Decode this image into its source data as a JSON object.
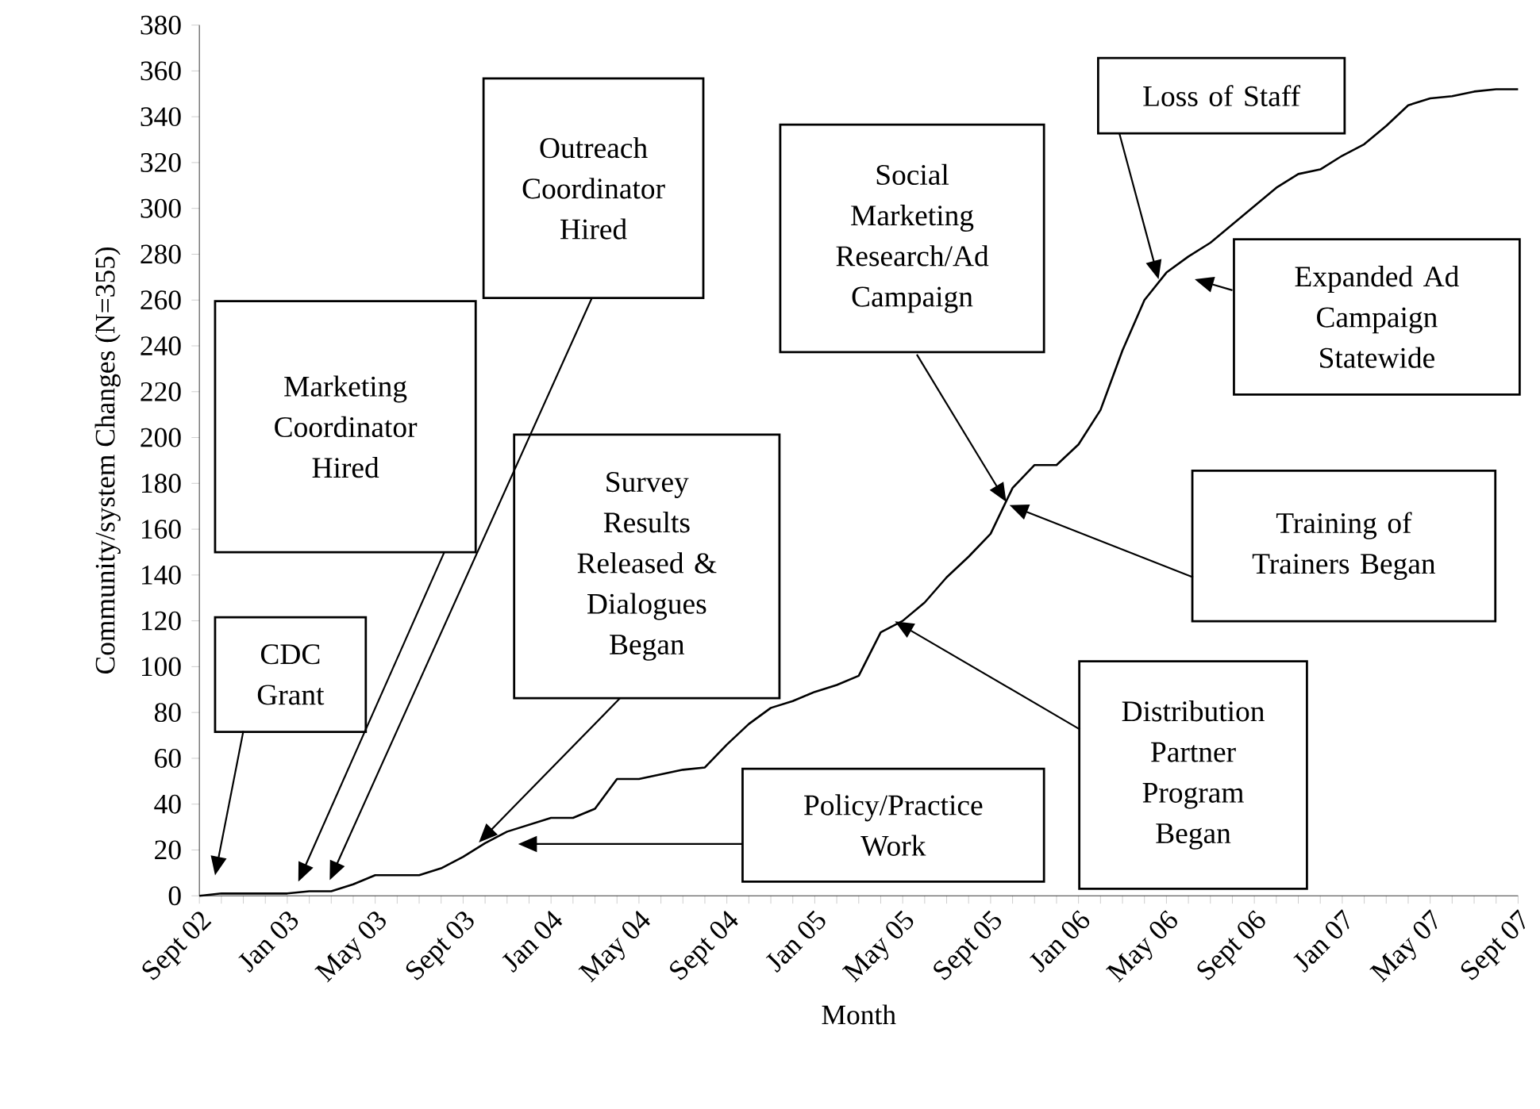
{
  "chart_data": {
    "type": "line",
    "xlabel": "Month",
    "ylabel": "Community/system Changes (N=355)",
    "categories": [
      "Sept 02",
      null,
      null,
      null,
      "Jan 03",
      null,
      null,
      null,
      "May 03",
      null,
      null,
      null,
      "Sept 03",
      null,
      null,
      null,
      "Jan 04",
      null,
      null,
      null,
      "May 04",
      null,
      null,
      null,
      "Sept 04",
      null,
      null,
      null,
      "Jan 05",
      null,
      null,
      null,
      "May 05",
      null,
      null,
      null,
      "Sept 05",
      null,
      null,
      null,
      "Jan 06",
      null,
      null,
      null,
      "May 06",
      null,
      null,
      null,
      "Sept 06",
      null,
      null,
      null,
      "Jan 07",
      null,
      null,
      null,
      "May 07",
      null,
      null,
      null,
      "Sept 07"
    ],
    "values": [
      0,
      1,
      1,
      1,
      1,
      2,
      2,
      5,
      9,
      9,
      9,
      12,
      17,
      23,
      28,
      31,
      34,
      34,
      38,
      51,
      51,
      53,
      55,
      56,
      66,
      75,
      82,
      85,
      89,
      92,
      96,
      115,
      120,
      128,
      139,
      148,
      158,
      178,
      188,
      188,
      197,
      212,
      238,
      260,
      272,
      279,
      285,
      293,
      301,
      309,
      315,
      317,
      323,
      328,
      336,
      345,
      348,
      349,
      351,
      352,
      352
    ],
    "color": "#000000",
    "ylim": [
      0,
      380
    ],
    "yticks": [
      0,
      20,
      40,
      60,
      80,
      100,
      120,
      140,
      160,
      180,
      200,
      220,
      240,
      260,
      280,
      300,
      320,
      340,
      360,
      380
    ],
    "annotations": [
      "CDC Grant",
      "Marketing Coordinator Hired",
      "Outreach Coordinator Hired",
      "Survey Results Released & Dialogues Began",
      "Policy/Practice Work",
      "Social Marketing Research/Ad Campaign",
      "Distribution Partner Program Began",
      "Training of Trainers Began",
      "Loss of Staff",
      "Expanded Ad Campaign Statewide"
    ]
  }
}
